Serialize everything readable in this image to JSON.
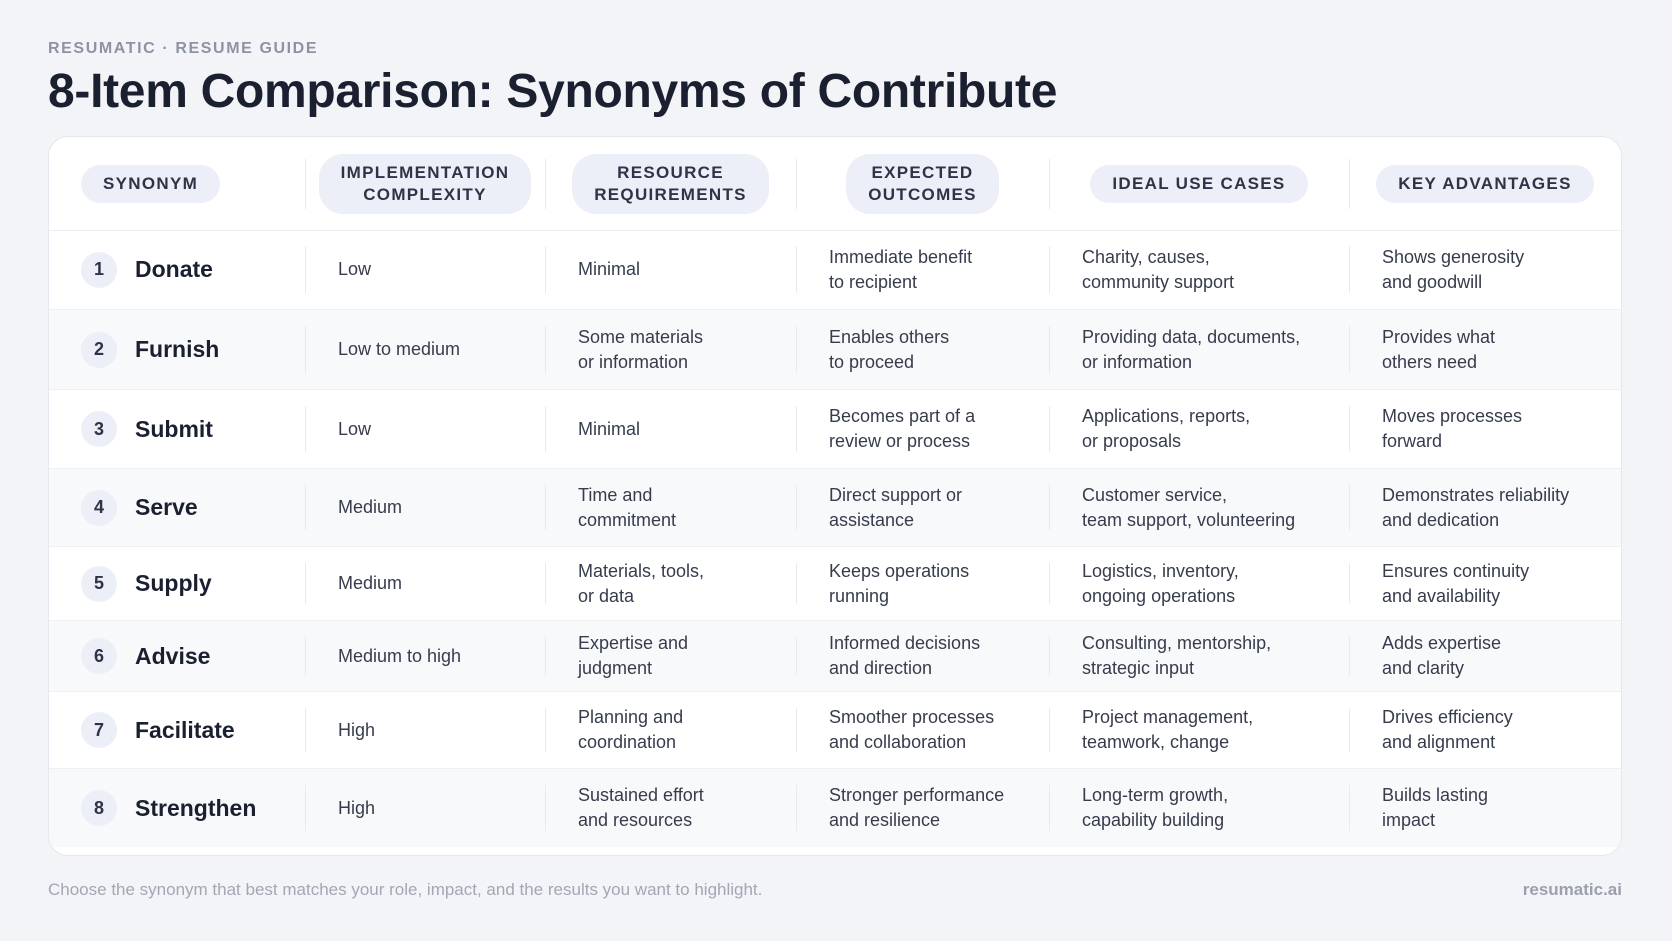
{
  "header": {
    "eyebrow": "RESUMATIC · RESUME GUIDE",
    "title": "8-Item Comparison: Synonyms of Contribute"
  },
  "table": {
    "columns": [
      "SYNONYM",
      "IMPLEMENTATION\nCOMPLEXITY",
      "RESOURCE\nREQUIREMENTS",
      "EXPECTED\nOUTCOMES",
      "IDEAL USE CASES",
      "KEY ADVANTAGES"
    ],
    "rows": [
      {
        "number": "1",
        "synonym": "Donate",
        "complexity": "Low",
        "resources": "Minimal",
        "outcomes": "Immediate benefit\nto recipient",
        "use_cases": "Charity, causes,\ncommunity support",
        "advantages": "Shows generosity\nand goodwill"
      },
      {
        "number": "2",
        "synonym": "Furnish",
        "complexity": "Low to medium",
        "resources": "Some materials\nor information",
        "outcomes": "Enables others\nto proceed",
        "use_cases": "Providing data, documents,\nor information",
        "advantages": "Provides what\nothers need"
      },
      {
        "number": "3",
        "synonym": "Submit",
        "complexity": "Low",
        "resources": "Minimal",
        "outcomes": "Becomes part of a\nreview or process",
        "use_cases": "Applications, reports,\nor proposals",
        "advantages": "Moves processes\nforward"
      },
      {
        "number": "4",
        "synonym": "Serve",
        "complexity": "Medium",
        "resources": "Time and\ncommitment",
        "outcomes": "Direct support or\nassistance",
        "use_cases": "Customer service,\nteam support, volunteering",
        "advantages": "Demonstrates reliability\nand dedication"
      },
      {
        "number": "5",
        "synonym": "Supply",
        "complexity": "Medium",
        "resources": "Materials, tools,\nor data",
        "outcomes": "Keeps operations\nrunning",
        "use_cases": "Logistics, inventory,\nongoing operations",
        "advantages": "Ensures continuity\nand availability"
      },
      {
        "number": "6",
        "synonym": "Advise",
        "complexity": "Medium to high",
        "resources": "Expertise and\njudgment",
        "outcomes": "Informed decisions\nand direction",
        "use_cases": "Consulting, mentorship,\nstrategic input",
        "advantages": "Adds expertise\nand clarity"
      },
      {
        "number": "7",
        "synonym": "Facilitate",
        "complexity": "High",
        "resources": "Planning and\ncoordination",
        "outcomes": "Smoother processes\nand collaboration",
        "use_cases": "Project management,\nteamwork, change",
        "advantages": "Drives efficiency\nand alignment"
      },
      {
        "number": "8",
        "synonym": "Strengthen",
        "complexity": "High",
        "resources": "Sustained effort\nand resources",
        "outcomes": "Stronger performance\nand resilience",
        "use_cases": "Long-term growth,\ncapability building",
        "advantages": "Builds lasting\nimpact"
      }
    ]
  },
  "footer": {
    "note": "Choose the synonym that best matches your role, impact, and the results you want to highlight.",
    "brand": "resumatic.ai"
  }
}
